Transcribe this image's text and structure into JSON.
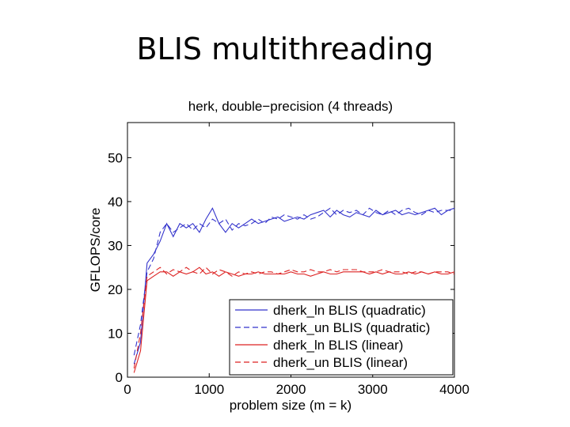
{
  "slide": {
    "title": "BLIS multithreading"
  },
  "chart_data": {
    "type": "line",
    "title": "herk, double−precision (4 threads)",
    "xlabel": "problem size (m = k)",
    "ylabel": "GFLOPS/core",
    "xlim": [
      0,
      4000
    ],
    "ylim": [
      0,
      58
    ],
    "xticks": [
      0,
      1000,
      2000,
      3000,
      4000
    ],
    "yticks": [
      0,
      10,
      20,
      30,
      40,
      50
    ],
    "grid": false,
    "legend_position": "bottom-right",
    "x": [
      80,
      160,
      240,
      320,
      400,
      480,
      560,
      640,
      720,
      800,
      880,
      960,
      1040,
      1120,
      1200,
      1280,
      1360,
      1440,
      1520,
      1600,
      1680,
      1760,
      1840,
      1920,
      2000,
      2080,
      2160,
      2240,
      2320,
      2400,
      2480,
      2560,
      2640,
      2720,
      2800,
      2880,
      2960,
      3040,
      3120,
      3200,
      3280,
      3360,
      3440,
      3520,
      3600,
      3680,
      3760,
      3840,
      3920,
      4000
    ],
    "series": [
      {
        "name": "dherk_ln BLIS (quadratic)",
        "color": "#3333cc",
        "dash": "solid",
        "values": [
          3,
          8,
          26,
          28,
          31,
          35,
          32,
          35,
          34,
          35,
          33,
          36,
          38.5,
          35,
          33,
          35,
          34,
          35,
          36,
          35,
          35.5,
          36,
          36.5,
          35.5,
          36,
          36.5,
          36,
          37,
          37.5,
          38,
          36.5,
          38,
          37,
          36.5,
          37.5,
          37,
          36.5,
          38,
          37,
          37.5,
          38,
          37,
          37.5,
          37,
          37.5,
          38,
          38.5,
          37,
          38,
          38.5
        ]
      },
      {
        "name": "dherk_un BLIS (quadratic)",
        "color": "#3333cc",
        "dash": "dashed",
        "values": [
          5,
          12,
          24,
          27,
          33,
          35,
          33,
          34,
          35,
          33.5,
          35,
          34,
          36,
          35,
          36,
          33.5,
          35,
          34.5,
          35,
          36,
          35,
          36.5,
          36,
          37,
          36.5,
          36,
          37,
          36,
          36.5,
          37.5,
          38.5,
          37,
          38,
          37.5,
          38,
          37,
          38.5,
          37.5,
          37,
          38,
          37,
          38,
          38.5,
          37.5,
          37,
          38,
          37.5,
          38,
          38,
          38
        ]
      },
      {
        "name": "dherk_ln BLIS (linear)",
        "color": "#dd2222",
        "dash": "solid",
        "values": [
          1,
          6,
          22,
          23,
          24,
          24,
          23,
          24,
          23.5,
          24,
          25,
          23.5,
          24,
          23,
          24,
          23.5,
          23,
          23.5,
          23.5,
          24,
          23.5,
          23.5,
          23.5,
          23.5,
          24,
          23.5,
          23.5,
          23,
          23.5,
          24,
          23.5,
          23.5,
          24,
          24,
          24,
          24,
          23.5,
          24,
          23.5,
          24,
          23.5,
          23.5,
          24,
          23.5,
          24,
          23.5,
          24,
          23.5,
          23.5,
          24
        ]
      },
      {
        "name": "dherk_un BLIS (linear)",
        "color": "#dd2222",
        "dash": "dashed",
        "values": [
          2,
          10,
          23,
          24,
          25,
          23.5,
          24.5,
          24,
          25,
          24,
          23.5,
          25,
          23.5,
          24.5,
          24,
          23,
          24,
          23.5,
          24,
          23.5,
          24,
          24,
          23.5,
          24,
          24.5,
          24,
          24,
          24.5,
          24,
          24,
          24.5,
          24,
          24.5,
          24.5,
          24.5,
          24,
          24,
          24,
          24.5,
          24,
          24,
          24,
          23.5,
          24,
          24,
          23.5,
          24,
          24,
          24,
          23.5
        ]
      }
    ]
  }
}
